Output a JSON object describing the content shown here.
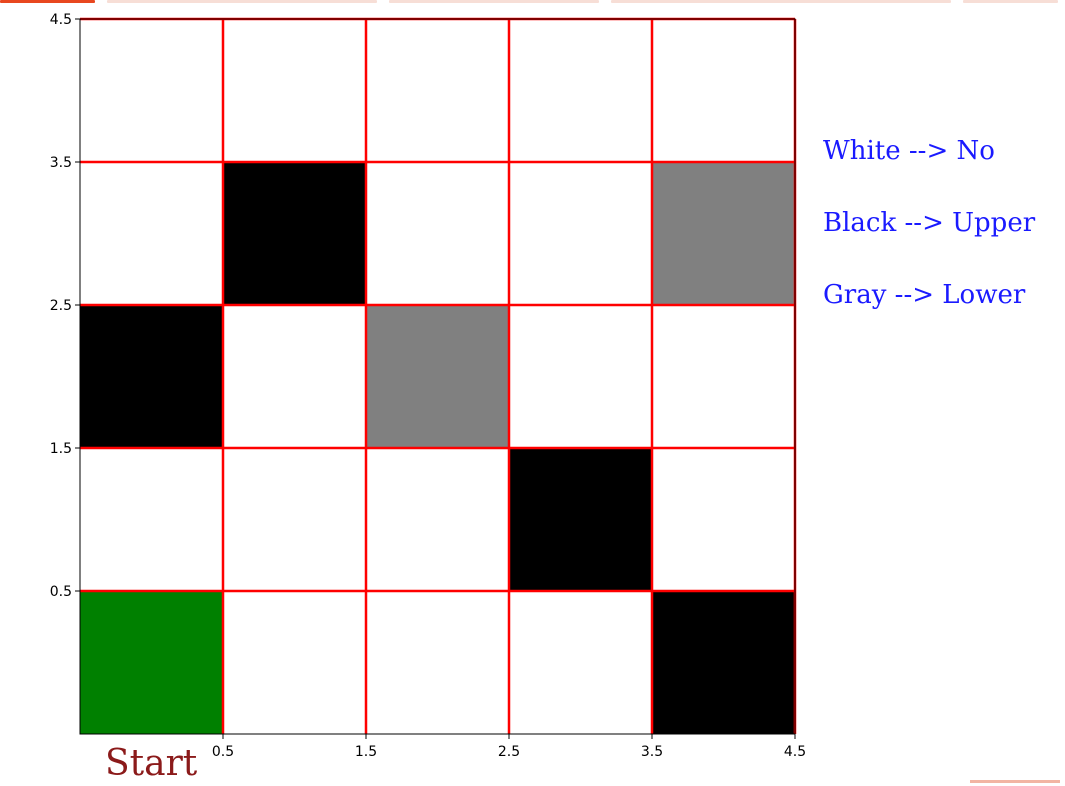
{
  "chart_data": {
    "type": "heatmap",
    "title": "",
    "xlabel": "",
    "ylabel": "",
    "x_ticks": [
      "0.5",
      "1.5",
      "2.5",
      "3.5",
      "4.5"
    ],
    "y_ticks": [
      "0.5",
      "1.5",
      "2.5",
      "3.5",
      "4.5"
    ],
    "xlim": [
      -0.5,
      4.5
    ],
    "ylim": [
      -0.5,
      4.5
    ],
    "grid": true,
    "grid_color": "#ff0000",
    "cell_colors": {
      "white": "#ffffff",
      "black": "#000000",
      "gray": "#808080",
      "start": "#008000"
    },
    "rows_top_to_bottom": [
      [
        "white",
        "white",
        "white",
        "white",
        "white"
      ],
      [
        "white",
        "black",
        "white",
        "white",
        "gray"
      ],
      [
        "black",
        "white",
        "gray",
        "white",
        "white"
      ],
      [
        "white",
        "white",
        "white",
        "black",
        "white"
      ],
      [
        "start",
        "white",
        "white",
        "white",
        "black"
      ]
    ],
    "legend": [
      {
        "text": "White --> No"
      },
      {
        "text": "Black --> Upper"
      },
      {
        "text": "Gray --> Lower"
      }
    ],
    "legend_color": "#1a1aff",
    "annotation": {
      "text": "Start",
      "color": "#8b1a1a"
    }
  },
  "decorations": {
    "accent_color": "#e8471f"
  }
}
